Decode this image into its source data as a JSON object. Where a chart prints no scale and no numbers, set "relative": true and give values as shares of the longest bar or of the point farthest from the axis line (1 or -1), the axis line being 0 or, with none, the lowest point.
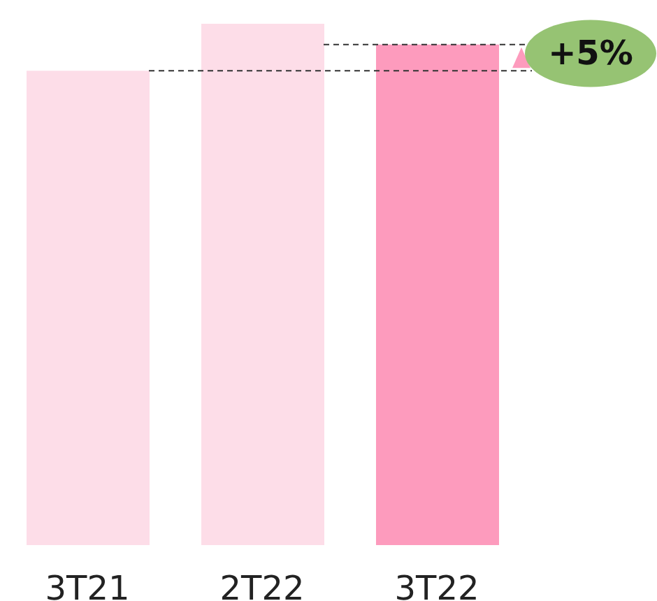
{
  "chart_data": {
    "type": "bar",
    "relative": true,
    "categories": [
      "3T21",
      "2T22",
      "3T22"
    ],
    "values": [
      0.91,
      1,
      0.96
    ],
    "colors": [
      "#fddde8",
      "#fddde8",
      "#fd9bbd"
    ],
    "ref_lines": [
      {
        "axis": "y",
        "value": 0.91,
        "color": "#333333",
        "line_style": "dashed"
      },
      {
        "axis": "y",
        "value": 0.96,
        "color": "#333333",
        "line_style": "dashed"
      }
    ],
    "annotations": [
      "+5%"
    ]
  }
}
